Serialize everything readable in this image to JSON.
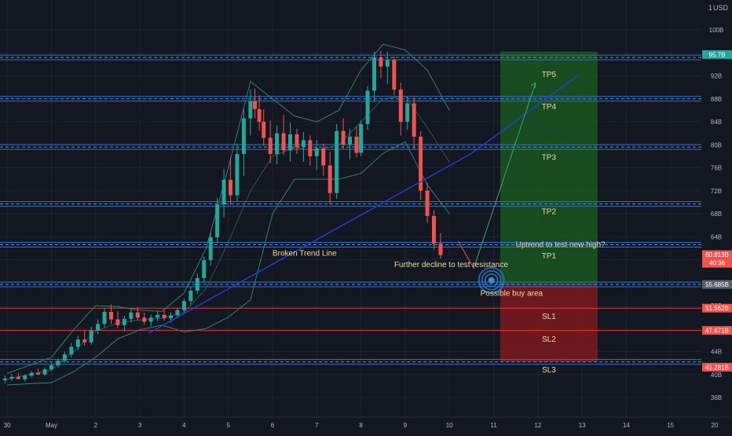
{
  "currency_label": "USD",
  "scale_indicator": "1",
  "chart_data": {
    "type": "candlestick",
    "x_axis": {
      "tick_labels": [
        "30",
        "May",
        "2",
        "3",
        "4",
        "5",
        "6",
        "7",
        "8",
        "9",
        "10",
        "11",
        "12",
        "13",
        "14",
        "15",
        "20"
      ],
      "tick_positions_day": [
        -1,
        0,
        1,
        2,
        3,
        4,
        5,
        6,
        7,
        8,
        9,
        10,
        11,
        12,
        13,
        14,
        15
      ]
    },
    "y_axis": {
      "unit": "B",
      "range": [
        34,
        103
      ],
      "tick_labels": [
        "100B",
        "96B",
        "92B",
        "88B",
        "84B",
        "80B",
        "76B",
        "72B",
        "68B",
        "64B",
        "60B",
        "56B",
        "52B",
        "48B",
        "44B",
        "40B",
        "36B"
      ],
      "tick_values": [
        100,
        96,
        92,
        88,
        84,
        80,
        76,
        72,
        68,
        64,
        60,
        56,
        52,
        48,
        44,
        40,
        36
      ]
    },
    "price_badges": [
      {
        "label": "95.7B",
        "value": 95.7,
        "color": "#26a69a"
      },
      {
        "label": "60.813B",
        "sub": "40:36",
        "value": 60.8,
        "color": "#ef5350"
      },
      {
        "label": "55.685B",
        "value": 55.685,
        "color": "#5d606b"
      },
      {
        "label": "51.562B",
        "value": 51.562,
        "color": "#ef5350"
      },
      {
        "label": "47.671B",
        "value": 47.671,
        "color": "#ef5350"
      },
      {
        "label": "41.281B",
        "value": 41.281,
        "color": "#ef5350"
      }
    ],
    "horizontal_levels": [
      {
        "value": 95.2,
        "style": "blue-double"
      },
      {
        "value": 88,
        "style": "blue-double"
      },
      {
        "value": 79.6,
        "style": "blue-double"
      },
      {
        "value": 69.7,
        "style": "blue-double"
      },
      {
        "value": 62.6,
        "style": "blue-double"
      },
      {
        "value": 55.685,
        "style": "blue-double"
      },
      {
        "value": 51.562,
        "style": "red"
      },
      {
        "value": 47.671,
        "style": "red"
      },
      {
        "value": 42.2,
        "style": "blue-double"
      }
    ],
    "target_labels": [
      {
        "label": "TP5",
        "value": 91.8
      },
      {
        "label": "TP4",
        "value": 86.2
      },
      {
        "label": "TP3",
        "value": 77.4
      },
      {
        "label": "TP2",
        "value": 67.9
      },
      {
        "label": "TP1",
        "value": 60.2
      },
      {
        "label": "SL1",
        "value": 49.7
      },
      {
        "label": "SL2",
        "value": 45.7
      },
      {
        "label": "SL3",
        "value": 40.4
      }
    ],
    "zones": [
      {
        "type": "profit",
        "from_day": 10.15,
        "to_day": 12.35,
        "low": 55.685,
        "high": 96.2,
        "color": "#1b5e20"
      },
      {
        "type": "loss",
        "from_day": 10.15,
        "to_day": 12.35,
        "low": 42.2,
        "high": 55.685,
        "color": "#8b1a1f"
      }
    ],
    "annotations": [
      {
        "text": "Broken Trend Line",
        "day": 5.0,
        "value": 60.7
      },
      {
        "text": "Further decline to test resistance",
        "day": 7.75,
        "value": 58.7
      },
      {
        "text": "Uptrend to test new high?",
        "day": 10.5,
        "value": 62.2
      },
      {
        "text": "Possible buy area",
        "day": 9.7,
        "value": 53.7
      }
    ],
    "trend_line": {
      "points": [
        [
          2.2,
          47.2
        ],
        [
          9.5,
          78.5
        ],
        [
          11.9,
          92.0
        ]
      ]
    },
    "projection_path": {
      "points": [
        [
          9.2,
          63.2
        ],
        [
          9.55,
          58.5
        ],
        [
          10.95,
          90.8
        ]
      ]
    },
    "buy_target": {
      "day": 9.95,
      "value": 56.4
    },
    "ohlc_key": [
      "day",
      "open",
      "high",
      "low",
      "close"
    ],
    "candles": [
      [
        -1.05,
        39.0,
        39.8,
        38.5,
        39.3
      ],
      [
        -0.9,
        39.3,
        40.1,
        38.9,
        39.6
      ],
      [
        -0.75,
        39.6,
        40.3,
        39.2,
        39.2
      ],
      [
        -0.6,
        39.2,
        40.0,
        38.8,
        39.8
      ],
      [
        -0.45,
        39.8,
        40.6,
        39.5,
        40.3
      ],
      [
        -0.3,
        40.3,
        41.0,
        39.9,
        40.0
      ],
      [
        -0.15,
        40.0,
        41.2,
        39.8,
        40.9
      ],
      [
        0.0,
        40.9,
        42.0,
        40.6,
        41.6
      ],
      [
        0.15,
        41.6,
        42.8,
        41.2,
        42.4
      ],
      [
        0.3,
        42.4,
        44.0,
        42.0,
        43.5
      ],
      [
        0.45,
        43.5,
        45.5,
        43.0,
        44.8
      ],
      [
        0.6,
        44.8,
        46.8,
        44.2,
        46.1
      ],
      [
        0.75,
        46.1,
        47.8,
        45.0,
        45.6
      ],
      [
        0.9,
        45.6,
        48.3,
        45.2,
        47.7
      ],
      [
        1.05,
        47.7,
        49.6,
        47.0,
        48.8
      ],
      [
        1.2,
        48.8,
        51.6,
        48.2,
        50.9
      ],
      [
        1.35,
        50.9,
        52.2,
        48.8,
        49.6
      ],
      [
        1.5,
        49.6,
        51.0,
        48.1,
        48.6
      ],
      [
        1.65,
        48.6,
        50.2,
        47.5,
        49.7
      ],
      [
        1.8,
        49.7,
        51.4,
        49.0,
        50.8
      ],
      [
        1.95,
        50.8,
        51.8,
        49.4,
        49.9
      ],
      [
        2.1,
        49.9,
        50.8,
        48.6,
        49.2
      ],
      [
        2.25,
        49.2,
        50.4,
        48.4,
        49.9
      ],
      [
        2.4,
        49.9,
        51.0,
        49.3,
        50.4
      ],
      [
        2.55,
        50.4,
        51.4,
        49.4,
        49.8
      ],
      [
        2.7,
        49.8,
        50.8,
        49.0,
        50.3
      ],
      [
        2.85,
        50.3,
        51.6,
        49.8,
        51.2
      ],
      [
        3.0,
        51.2,
        53.2,
        50.8,
        52.8
      ],
      [
        3.15,
        52.8,
        55.2,
        52.2,
        54.6
      ],
      [
        3.3,
        54.6,
        57.6,
        54.0,
        56.8
      ],
      [
        3.45,
        56.8,
        60.6,
        56.0,
        59.9
      ],
      [
        3.6,
        59.9,
        64.8,
        58.9,
        63.9
      ],
      [
        3.75,
        63.9,
        70.8,
        63.0,
        69.6
      ],
      [
        3.9,
        69.6,
        75.8,
        67.4,
        73.9
      ],
      [
        4.05,
        73.9,
        77.8,
        69.6,
        71.2
      ],
      [
        4.2,
        71.2,
        80.2,
        70.2,
        78.4
      ],
      [
        4.35,
        78.4,
        86.2,
        74.6,
        84.6
      ],
      [
        4.5,
        84.6,
        89.6,
        81.6,
        87.6
      ],
      [
        4.6,
        87.6,
        89.8,
        84.6,
        86.2
      ],
      [
        4.7,
        86.2,
        88.6,
        82.4,
        84.0
      ],
      [
        4.8,
        84.0,
        86.2,
        79.8,
        81.2
      ],
      [
        4.95,
        81.2,
        84.2,
        76.8,
        78.4
      ],
      [
        5.1,
        78.4,
        83.4,
        76.6,
        82.0
      ],
      [
        5.25,
        82.0,
        85.2,
        78.2,
        79.0
      ],
      [
        5.4,
        79.0,
        83.8,
        77.0,
        81.8
      ],
      [
        5.55,
        81.8,
        82.8,
        78.4,
        79.6
      ],
      [
        5.7,
        79.6,
        82.2,
        77.0,
        80.8
      ],
      [
        5.85,
        80.8,
        81.6,
        76.4,
        78.0
      ],
      [
        6.0,
        78.0,
        80.8,
        75.6,
        79.4
      ],
      [
        6.15,
        79.4,
        80.2,
        74.6,
        76.4
      ],
      [
        6.3,
        76.4,
        78.8,
        69.6,
        71.6
      ],
      [
        6.45,
        71.6,
        83.6,
        70.6,
        82.4
      ],
      [
        6.6,
        82.4,
        84.6,
        79.2,
        80.0
      ],
      [
        6.75,
        80.0,
        82.8,
        77.4,
        81.4
      ],
      [
        6.9,
        81.4,
        83.2,
        77.8,
        78.6
      ],
      [
        7.0,
        78.6,
        84.2,
        78.0,
        83.6
      ],
      [
        7.15,
        83.6,
        90.2,
        82.6,
        89.4
      ],
      [
        7.3,
        89.4,
        96.2,
        87.6,
        95.2
      ],
      [
        7.45,
        95.2,
        96.4,
        91.6,
        93.6
      ],
      [
        7.6,
        93.6,
        96.2,
        90.6,
        94.8
      ],
      [
        7.75,
        94.8,
        95.4,
        88.6,
        89.6
      ],
      [
        7.9,
        89.6,
        90.8,
        81.6,
        84.0
      ],
      [
        8.05,
        84.0,
        88.4,
        82.6,
        87.2
      ],
      [
        8.2,
        87.2,
        88.2,
        79.2,
        81.4
      ],
      [
        8.35,
        81.4,
        82.4,
        70.4,
        72.0
      ],
      [
        8.5,
        72.0,
        73.4,
        66.4,
        67.6
      ],
      [
        8.65,
        67.6,
        68.6,
        61.8,
        62.8
      ],
      [
        8.8,
        62.8,
        64.6,
        60.2,
        60.8
      ]
    ],
    "bollinger": {
      "days": [
        -1.0,
        0.0,
        0.5,
        1.0,
        1.5,
        2.0,
        2.5,
        3.0,
        3.5,
        4.0,
        4.5,
        5.0,
        5.5,
        6.0,
        6.5,
        7.0,
        7.5,
        8.0,
        8.5,
        9.0
      ],
      "upper": [
        40.2,
        43.0,
        47.8,
        52.0,
        51.8,
        51.2,
        51.0,
        54.2,
        62.0,
        76.0,
        91.0,
        88.0,
        85.0,
        84.0,
        86.0,
        93.0,
        97.5,
        96.5,
        93.0,
        86.0
      ],
      "middle": [
        39.2,
        40.8,
        44.0,
        47.5,
        49.0,
        49.5,
        49.8,
        50.8,
        55.0,
        63.0,
        72.0,
        78.0,
        79.5,
        79.0,
        80.0,
        84.0,
        88.0,
        88.5,
        83.0,
        77.0
      ],
      "lower": [
        38.2,
        38.6,
        40.5,
        43.0,
        46.2,
        47.8,
        48.6,
        47.4,
        48.0,
        50.0,
        53.0,
        68.0,
        74.0,
        74.0,
        74.0,
        75.0,
        78.5,
        80.5,
        73.0,
        68.0
      ]
    }
  }
}
